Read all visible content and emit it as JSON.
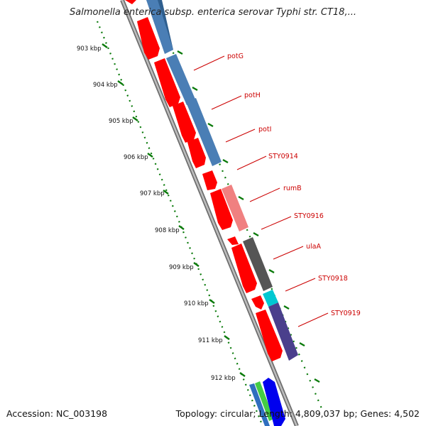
{
  "title": "Salmonella enterica subsp. enterica serovar Typhi str. CT18,...",
  "footer": {
    "accession": "Accession: NC_003198",
    "summary": "Topology: circular; Length: 4,809,037 bp; Genes: 4,502"
  },
  "colors": {
    "backbone": "#8c8c8c",
    "tick": "#0a7a0a",
    "cds_forward": "#ff0000",
    "label": "#cc0000",
    "potG": "#4a7eb5",
    "potH": "#4a7eb5",
    "potI": "#4a7eb5",
    "rumB": "#f08080",
    "ulaA": "#555555",
    "STY0918": "#00c8d2",
    "STY0919": "#4a3f8c"
  },
  "kbp_ticks": [
    "903 kbp",
    "904 kbp",
    "905 kbp",
    "906 kbp",
    "907 kbp",
    "908 kbp",
    "909 kbp",
    "910 kbp",
    "911 kbp",
    "912 kbp"
  ],
  "genes": [
    {
      "label": "potG"
    },
    {
      "label": "potH"
    },
    {
      "label": "potI"
    },
    {
      "label": "STY0914"
    },
    {
      "label": "rumB"
    },
    {
      "label": "STY0916"
    },
    {
      "label": "ulaA"
    },
    {
      "label": "STY0918"
    },
    {
      "label": "STY0919"
    }
  ]
}
